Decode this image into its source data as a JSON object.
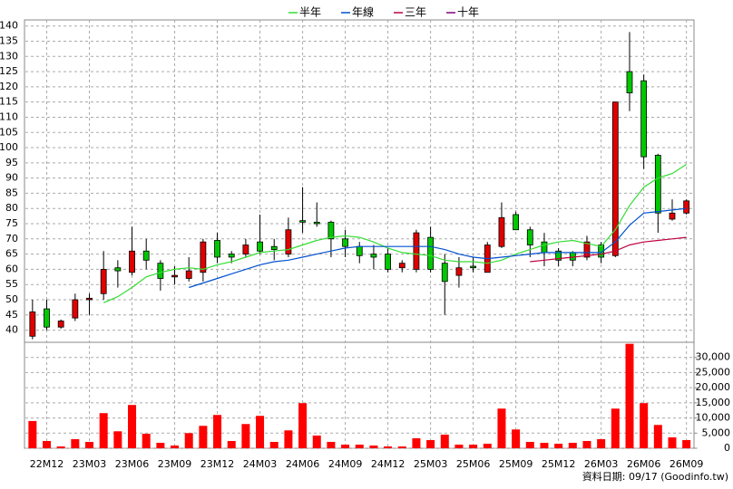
{
  "chart_data": {
    "type": "candlestick",
    "categories": [
      null,
      "22M12",
      null,
      null,
      "23M03",
      null,
      null,
      "23M06",
      null,
      null,
      "23M09",
      null,
      null,
      "23M12",
      null,
      null,
      "24M03",
      null,
      null,
      "24M06",
      null,
      null,
      "24M09",
      null,
      null,
      "24M12",
      null,
      null,
      "25M03",
      null,
      null,
      "25M06",
      null,
      null,
      "25M09",
      null,
      null,
      "25M12",
      null,
      null,
      "26M03",
      null,
      null,
      "26M06",
      null,
      null,
      "26M09"
    ],
    "open": [
      38,
      47,
      41,
      44,
      50,
      52,
      60.5,
      59,
      66,
      62,
      57.5,
      57,
      59,
      69.5,
      65,
      65,
      69,
      67.5,
      65,
      76,
      75.5,
      75.5,
      70,
      67.5,
      65,
      65,
      60.5,
      60,
      70.5,
      62,
      58,
      61,
      59,
      67.5,
      78,
      73,
      69,
      66,
      65.5,
      64,
      68,
      64.5,
      125,
      122,
      97.5,
      76.5,
      78.5
    ],
    "high": [
      50,
      50,
      43.5,
      52,
      52,
      66,
      63,
      74,
      70,
      63,
      61,
      64,
      70,
      72,
      66,
      70,
      78,
      70,
      77,
      87,
      82,
      76,
      73,
      69,
      68,
      67,
      63,
      73,
      74,
      65,
      64,
      64,
      69,
      82,
      79,
      74,
      72,
      67,
      66,
      71,
      69,
      115,
      138,
      124,
      98,
      83,
      83
    ],
    "low": [
      37,
      40,
      40.5,
      43,
      45,
      50,
      54,
      58,
      60,
      53,
      55,
      56,
      56,
      62,
      62,
      64,
      65,
      63,
      64,
      72,
      74,
      64,
      64,
      62,
      60,
      59,
      59,
      59,
      59,
      45,
      54,
      59,
      59,
      67,
      73,
      64,
      61,
      61,
      61,
      63,
      62,
      64,
      112,
      93,
      72,
      76,
      78
    ],
    "close": [
      46,
      41,
      43,
      50,
      50.5,
      60,
      59.5,
      66,
      63,
      57,
      58,
      59.5,
      69,
      64,
      64,
      68,
      66,
      66.5,
      73,
      75.5,
      75,
      70,
      67.5,
      64.5,
      64,
      60,
      62,
      72,
      60,
      56,
      60.5,
      60.5,
      68,
      77,
      73,
      68,
      65.5,
      63,
      63,
      69,
      64,
      115,
      118,
      97,
      78.5,
      78.5,
      82.5
    ],
    "up_color": "#e00000",
    "down_color": "#00c800",
    "series": [
      {
        "name": "半年",
        "color": "#33dd33",
        "values": [
          null,
          null,
          null,
          null,
          null,
          49,
          51,
          54,
          57.5,
          59,
          60,
          60.5,
          60,
          61.5,
          62.5,
          64,
          65.5,
          66,
          66.5,
          68,
          69.5,
          70.5,
          71,
          70.5,
          69,
          67,
          65.5,
          65,
          64.5,
          63,
          62.5,
          62.5,
          62,
          63,
          65,
          66.5,
          68,
          69,
          69.5,
          68.5,
          67.5,
          73,
          81,
          87,
          90,
          91.5,
          94.5
        ]
      },
      {
        "name": "年線",
        "color": "#0050d0",
        "values": [
          null,
          null,
          null,
          null,
          null,
          null,
          null,
          null,
          null,
          null,
          null,
          54,
          55.5,
          57,
          58.5,
          60,
          61.5,
          62.5,
          63,
          64,
          65,
          66,
          67,
          67.5,
          67.5,
          67.5,
          67.5,
          67.5,
          67.5,
          66.5,
          65,
          64,
          63.5,
          64,
          64.5,
          65,
          65.5,
          65.5,
          65.5,
          65.5,
          65.5,
          69,
          74.5,
          78.5,
          79,
          79.5,
          80
        ]
      },
      {
        "name": "三年",
        "color": "#c00040",
        "values": [
          null,
          null,
          null,
          null,
          null,
          null,
          null,
          null,
          null,
          null,
          null,
          null,
          null,
          null,
          null,
          null,
          null,
          null,
          null,
          null,
          null,
          null,
          null,
          null,
          null,
          null,
          null,
          null,
          null,
          null,
          null,
          null,
          null,
          null,
          null,
          62.5,
          63,
          63.5,
          64,
          64.5,
          65,
          66,
          68,
          69,
          69.5,
          70,
          70.5
        ]
      },
      {
        "name": "十年",
        "color": "#800080",
        "values": [
          null,
          null,
          null,
          null,
          null,
          null,
          null,
          null,
          null,
          null,
          null,
          null,
          null,
          null,
          null,
          null,
          null,
          null,
          null,
          null,
          null,
          null,
          null,
          null,
          null,
          null,
          null,
          null,
          null,
          null,
          null,
          null,
          null,
          null,
          null,
          null,
          null,
          null,
          null,
          null,
          null,
          null,
          null,
          null,
          null,
          null,
          null
        ]
      }
    ],
    "ylim": [
      36,
      142
    ],
    "yticks": [
      40,
      45,
      50,
      55,
      60,
      65,
      70,
      75,
      80,
      85,
      90,
      95,
      100,
      105,
      110,
      115,
      120,
      125,
      130,
      135,
      140
    ],
    "volume": [
      9000,
      2400,
      600,
      3000,
      2100,
      11600,
      5600,
      14300,
      4800,
      1800,
      900,
      5000,
      7400,
      11000,
      2400,
      8000,
      10700,
      2100,
      5900,
      14900,
      4200,
      2100,
      1200,
      1200,
      900,
      600,
      600,
      3300,
      2700,
      4500,
      1200,
      1200,
      1500,
      13100,
      6200,
      2100,
      1800,
      1500,
      1800,
      2400,
      3000,
      13100,
      34500,
      14900,
      7700,
      3600,
      2700
    ],
    "volume_color": "#ff0000",
    "y2lim": [
      0,
      35000
    ],
    "y2ticks": [
      0,
      {
        "value": 5000,
        "label": "5,000"
      },
      {
        "value": 10000,
        "label": "10,000"
      },
      {
        "value": 15000,
        "label": "15,000"
      },
      {
        "value": 20000,
        "label": "20,000"
      },
      {
        "value": 25000,
        "label": "25,000"
      },
      {
        "value": 30000,
        "label": "30,000"
      }
    ],
    "grid": true,
    "legend": "top",
    "footnote": "資料日期: 09/17 (Goodinfo.tw)"
  }
}
